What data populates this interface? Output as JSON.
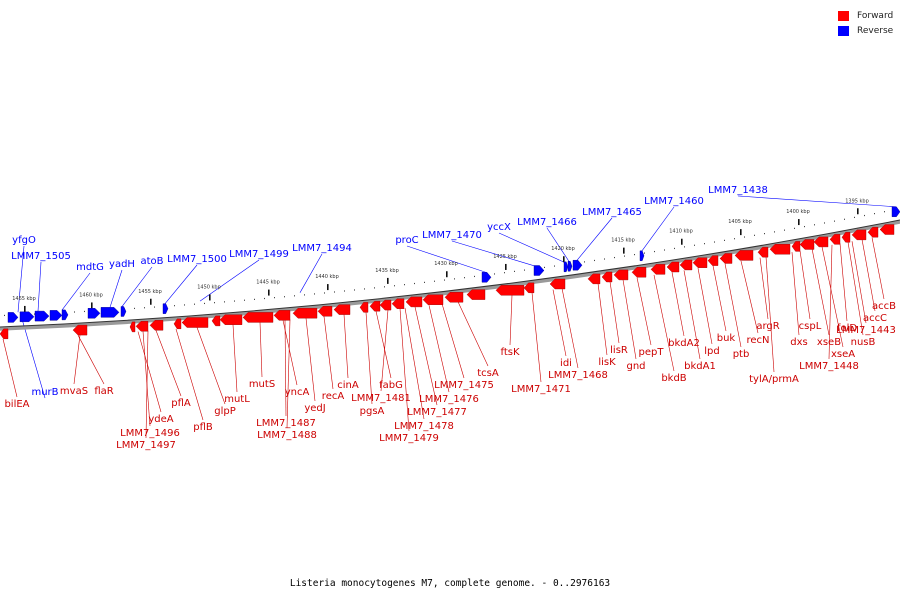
{
  "legend": [
    {
      "label": "Forward",
      "color": "#ff0000"
    },
    {
      "label": "Reverse",
      "color": "#0000ff"
    }
  ],
  "caption": "Listeria monocytogenes M7, complete genome. - 0..2976163",
  "ticks": [
    "1465 kbp",
    "1460 kbp",
    "1455 kbp",
    "1450 kbp",
    "1445 kbp",
    "1440 kbp",
    "1435 kbp",
    "1430 kbp",
    "1425 kbp",
    "1420 kbp",
    "1415 kbp",
    "1410 kbp",
    "1405 kbp",
    "1400 kbp",
    "1395 kbp"
  ],
  "reverse_labels": [
    "yfgO",
    "LMM7_1505",
    "mdtG",
    "yadH",
    "atoB",
    "LMM7_1500",
    "LMM7_1499",
    "LMM7_1494",
    "proC",
    "LMM7_1470",
    "yccX",
    "LMM7_1466",
    "LMM7_1465",
    "LMM7_1460",
    "LMM7_1438",
    "murB"
  ],
  "forward_labels": [
    "bilEA",
    "mvaS",
    "flaR",
    "ydeA",
    "LMM7_1496",
    "LMM7_1497",
    "pflA",
    "pflB",
    "glpP",
    "mutL",
    "mutS",
    "yncA",
    "LMM7_1487",
    "LMM7_1488",
    "yedJ",
    "recA",
    "cinA",
    "pgsA",
    "fabG",
    "LMM7_1481",
    "LMM7_1479",
    "LMM7_1478",
    "LMM7_1477",
    "LMM7_1476",
    "LMM7_1475",
    "tcsA",
    "ftsK",
    "LMM7_1471",
    "idi",
    "LMM7_1468",
    "lisK",
    "lisR",
    "gnd",
    "pepT",
    "bkdB",
    "bkdA2",
    "bkdA1",
    "lpd",
    "buk",
    "ptb",
    "recN",
    "argR",
    "tylA/prmA",
    "dxs",
    "cspL",
    "xseB",
    "xseA",
    "LMM7_1448",
    "folD",
    "nusB",
    "LMM7_1443",
    "accC",
    "accB"
  ]
}
